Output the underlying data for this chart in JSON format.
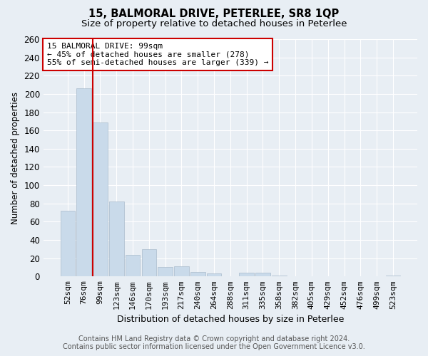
{
  "title1": "15, BALMORAL DRIVE, PETERLEE, SR8 1QP",
  "title2": "Size of property relative to detached houses in Peterlee",
  "xlabel": "Distribution of detached houses by size in Peterlee",
  "ylabel": "Number of detached properties",
  "categories": [
    "52sqm",
    "76sqm",
    "99sqm",
    "123sqm",
    "146sqm",
    "170sqm",
    "193sqm",
    "217sqm",
    "240sqm",
    "264sqm",
    "288sqm",
    "311sqm",
    "335sqm",
    "358sqm",
    "382sqm",
    "405sqm",
    "429sqm",
    "452sqm",
    "476sqm",
    "499sqm",
    "523sqm"
  ],
  "values": [
    72,
    206,
    169,
    82,
    24,
    30,
    10,
    11,
    5,
    3,
    0,
    4,
    4,
    1,
    0,
    0,
    0,
    0,
    0,
    0,
    1
  ],
  "highlight_index": 2,
  "bar_color": "#c9daea",
  "bar_edge_color": "#aabccc",
  "highlight_line_color": "#cc0000",
  "ylim": [
    0,
    260
  ],
  "yticks": [
    0,
    20,
    40,
    60,
    80,
    100,
    120,
    140,
    160,
    180,
    200,
    220,
    240,
    260
  ],
  "annotation_text": "15 BALMORAL DRIVE: 99sqm\n← 45% of detached houses are smaller (278)\n55% of semi-detached houses are larger (339) →",
  "annotation_box_color": "#ffffff",
  "annotation_box_edge_color": "#cc0000",
  "footer1": "Contains HM Land Registry data © Crown copyright and database right 2024.",
  "footer2": "Contains public sector information licensed under the Open Government Licence v3.0.",
  "bg_color": "#e8eef4",
  "grid_color": "#ffffff",
  "title1_fontsize": 10.5,
  "title2_fontsize": 9.5,
  "axis_fontsize": 8.5,
  "annotation_fontsize": 8,
  "footer_fontsize": 7
}
